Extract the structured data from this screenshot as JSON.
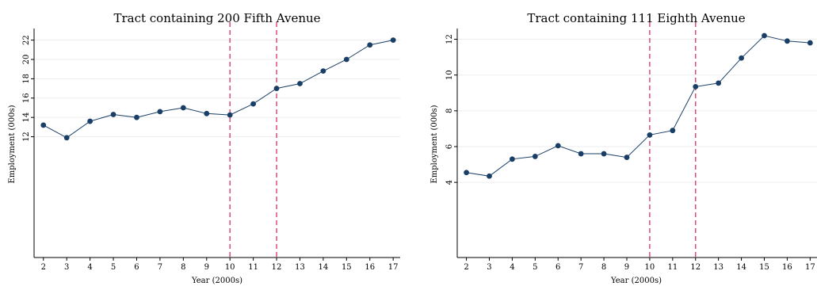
{
  "colors": {
    "line": "#1a3f66",
    "marker": "#1a3f66",
    "vline": "#d6436e",
    "grid": "#ededed",
    "axis": "#000000"
  },
  "chart_data": [
    {
      "type": "line",
      "title": "Tract containing 200 Fifth Avenue",
      "xlabel": "Year (2000s)",
      "ylabel": "Employment (000s)",
      "x": [
        2,
        3,
        4,
        5,
        6,
        7,
        8,
        9,
        10,
        11,
        12,
        13,
        14,
        15,
        16,
        17
      ],
      "x_tick_labels": [
        "2",
        "3",
        "4",
        "5",
        "6",
        "7",
        "8",
        "9",
        "10",
        "11",
        "12",
        "13",
        "14",
        "15",
        "16",
        "17"
      ],
      "y": [
        13.2,
        11.9,
        13.6,
        14.3,
        14.0,
        14.6,
        15.0,
        14.4,
        14.25,
        15.4,
        17.0,
        17.5,
        18.8,
        20.0,
        21.5,
        22.0
      ],
      "xlim": [
        1.6,
        17.3
      ],
      "ylim": [
        -0.5,
        23.2
      ],
      "yticks": [
        12,
        14,
        16,
        18,
        20,
        22
      ],
      "vlines": [
        10,
        12
      ],
      "grid": true
    },
    {
      "type": "line",
      "title": "Tract containing 111 Eighth Avenue",
      "xlabel": "Year (2000s)",
      "ylabel": "Employment (000s)",
      "x": [
        2,
        3,
        4,
        5,
        6,
        7,
        8,
        9,
        10,
        11,
        12,
        13,
        14,
        15,
        16,
        17
      ],
      "x_tick_labels": [
        "2",
        "3",
        "4",
        "5",
        "6",
        "7",
        "8",
        "9",
        "10",
        "11",
        "12",
        "13",
        "14",
        "15",
        "16",
        "17"
      ],
      "y": [
        4.55,
        4.35,
        5.3,
        5.45,
        6.05,
        5.6,
        5.6,
        5.4,
        6.65,
        6.9,
        9.35,
        9.55,
        10.95,
        12.2,
        11.9,
        11.8
      ],
      "xlim": [
        1.6,
        17.3
      ],
      "ylim": [
        -0.2,
        12.6
      ],
      "yticks": [
        4,
        6,
        8,
        10,
        12
      ],
      "vlines": [
        10,
        12
      ],
      "grid": true
    }
  ]
}
